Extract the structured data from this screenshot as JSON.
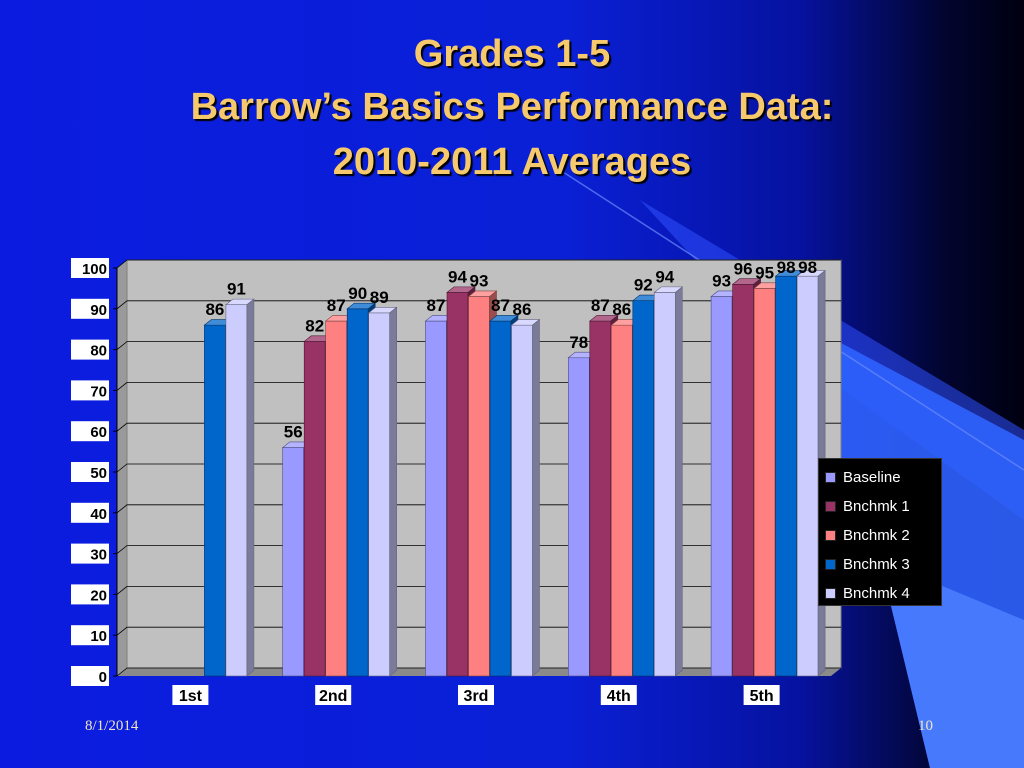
{
  "slide": {
    "title_line1": "Grades 1-5",
    "title_line2": "Barrow’s Basics Performance Data:",
    "title_line3": "2010-2011 Averages",
    "date": "8/1/2014",
    "page_number": "10"
  },
  "colors": {
    "title": "#f7c96d",
    "plot_background": "#c0c0c0",
    "series": [
      "#9999ff",
      "#993366",
      "#ff8080",
      "#0066cc",
      "#ccccff"
    ]
  },
  "chart_data": {
    "type": "bar",
    "style": "3d-clustered",
    "categories": [
      "1st",
      "2nd",
      "3rd",
      "4th",
      "5th"
    ],
    "series": [
      {
        "name": "Baseline",
        "values": [
          null,
          56,
          87,
          78,
          93
        ]
      },
      {
        "name": "Bnchmk 1",
        "values": [
          null,
          82,
          94,
          87,
          96
        ]
      },
      {
        "name": "Bnchmk 2",
        "values": [
          null,
          87,
          93,
          86,
          95
        ]
      },
      {
        "name": "Bnchmk 3",
        "values": [
          86,
          90,
          87,
          92,
          98
        ]
      },
      {
        "name": "Bnchmk 4",
        "values": [
          91,
          89,
          86,
          94,
          98
        ]
      }
    ],
    "ylim": [
      0,
      100
    ],
    "yticks": [
      0,
      10,
      20,
      30,
      40,
      50,
      60,
      70,
      80,
      90,
      100
    ],
    "grid": true,
    "legend_position": "right"
  }
}
